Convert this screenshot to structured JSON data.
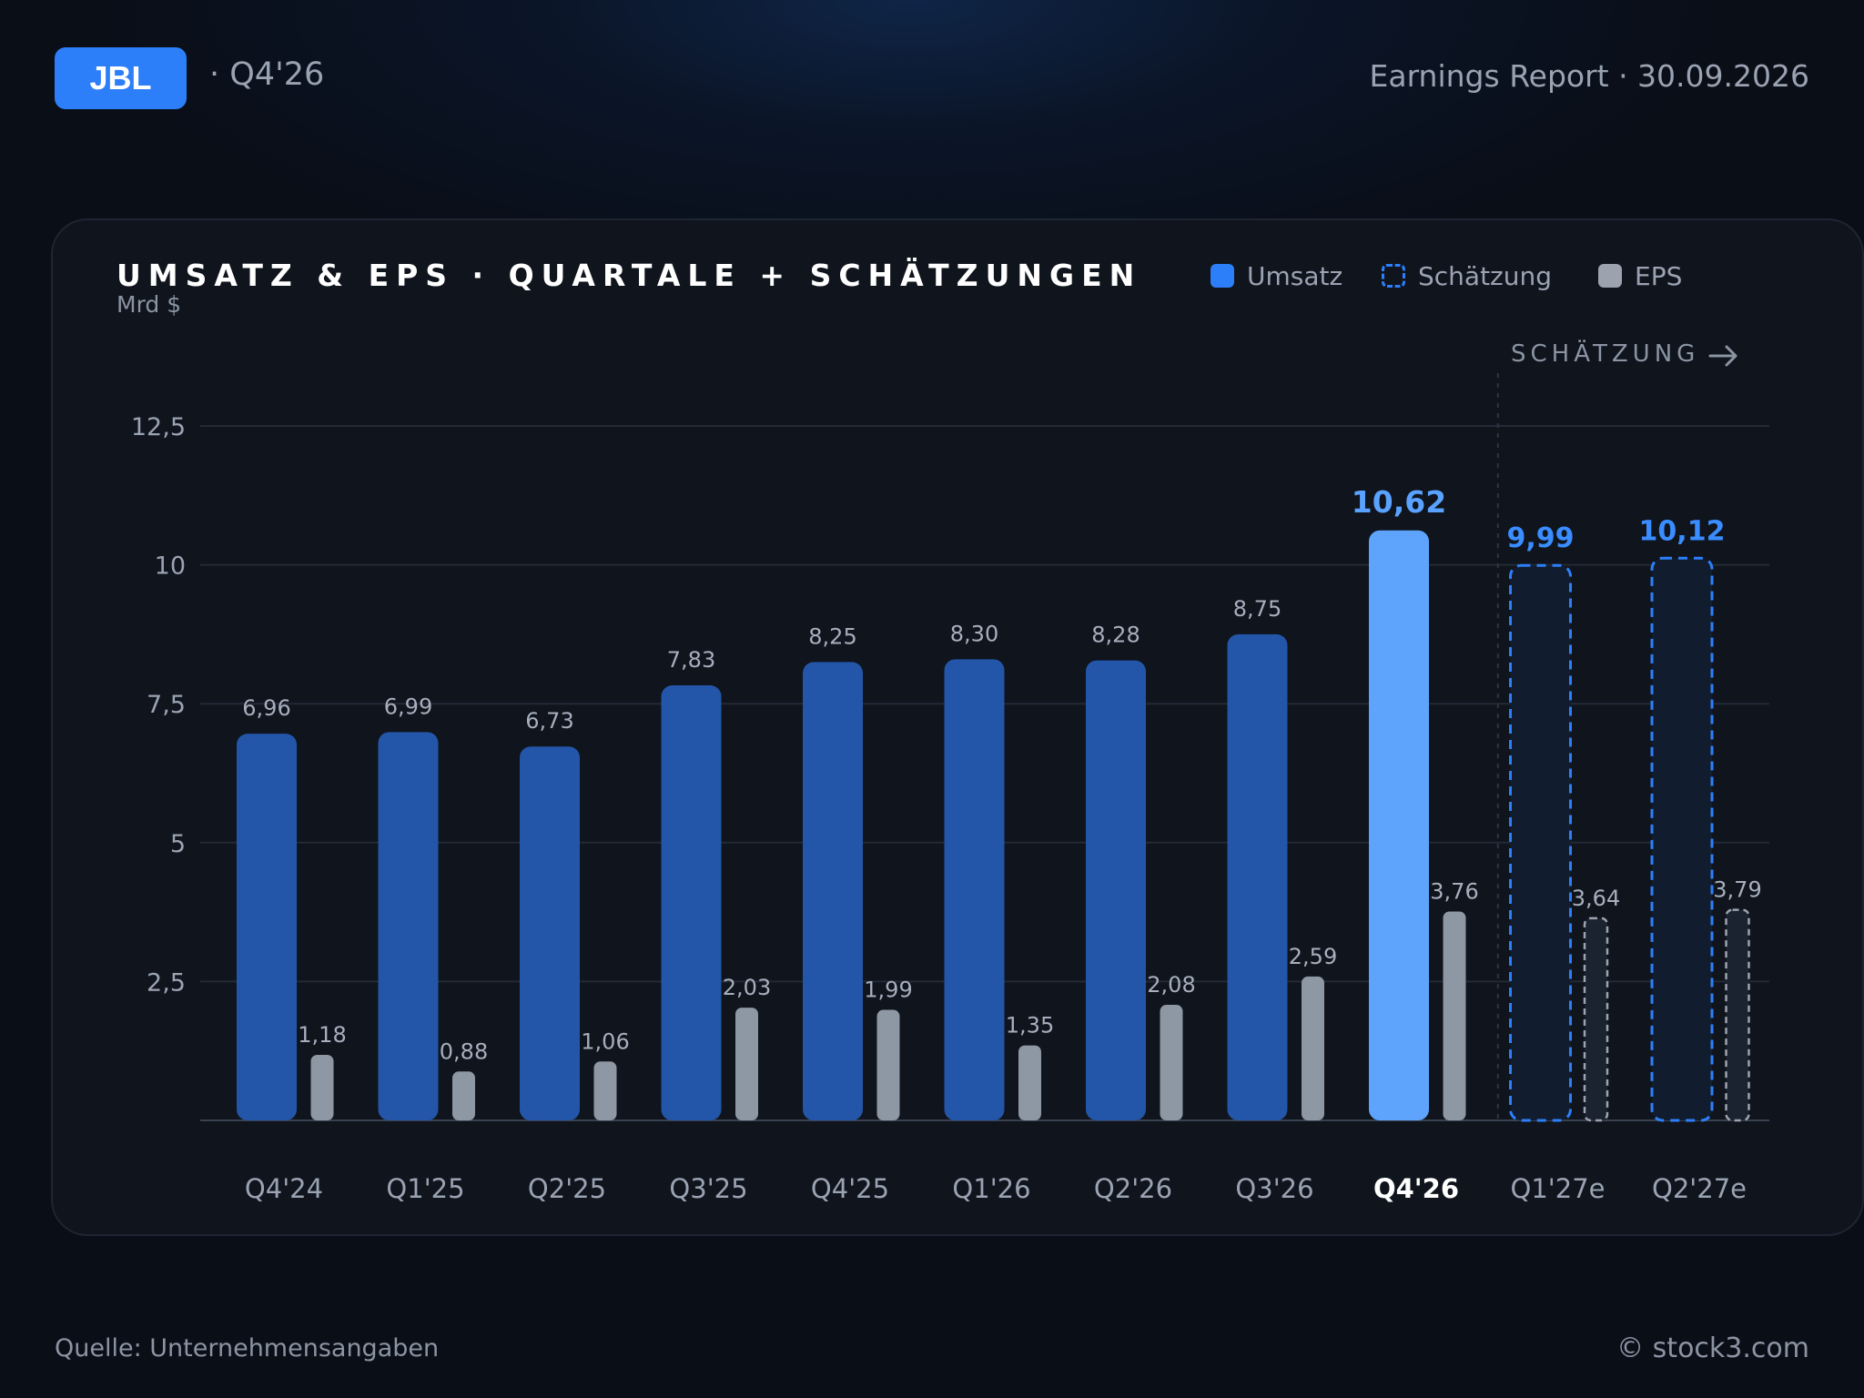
{
  "header": {
    "ticker": "JBL",
    "period": "· Q4'26",
    "report": "Earnings Report · 30.09.2026"
  },
  "card": {
    "title": "UMSATZ & EPS · QUARTALE + SCHÄTZUNGEN",
    "unit": "Mrd $",
    "estimate_label": "SCHÄTZUNG"
  },
  "legend": {
    "umsatz": "Umsatz",
    "schaetzung": "Schätzung",
    "eps": "EPS"
  },
  "colors": {
    "revenue": "#2356a8",
    "revenue_highlight": "#5ea4fd",
    "estimate_border": "#2d7ff9",
    "eps": "#8e97a4",
    "eps_estimate_border": "#9ca3af",
    "accent": "#2d7ff9"
  },
  "chart_data": {
    "type": "bar",
    "title": "UMSATZ & EPS · QUARTALE + SCHÄTZUNGEN",
    "ylabel": "Mrd $",
    "ylim": [
      0,
      12.5
    ],
    "yticks": [
      "2,5",
      "5",
      "7,5",
      "10",
      "12,5"
    ],
    "grid": true,
    "legend_position": "top-right",
    "categories": [
      "Q4'24",
      "Q1'25",
      "Q2'25",
      "Q3'25",
      "Q4'25",
      "Q1'26",
      "Q2'26",
      "Q3'26",
      "Q4'26",
      "Q1'27e",
      "Q2'27e"
    ],
    "highlight_category": "Q4'26",
    "estimate_categories": [
      "Q1'27e",
      "Q2'27e"
    ],
    "series": [
      {
        "name": "Umsatz",
        "values": [
          6.96,
          6.99,
          6.73,
          7.83,
          8.25,
          8.3,
          8.28,
          8.75,
          10.62,
          9.99,
          10.12
        ],
        "labels": [
          "6,96",
          "6,99",
          "6,73",
          "7,83",
          "8,25",
          "8,30",
          "8,28",
          "8,75",
          "10,62",
          "9,99",
          "10,12"
        ]
      },
      {
        "name": "EPS",
        "values": [
          1.18,
          0.88,
          1.06,
          2.03,
          1.99,
          1.35,
          2.08,
          2.59,
          3.76,
          3.64,
          3.79
        ],
        "labels": [
          "1,18",
          "0,88",
          "1,06",
          "2,03",
          "1,99",
          "1,35",
          "2,08",
          "2,59",
          "3,76",
          "3,64",
          "3,79"
        ]
      }
    ]
  },
  "footer": {
    "source": "Quelle: Unternehmensangaben",
    "copyright": "© stock3.com"
  }
}
